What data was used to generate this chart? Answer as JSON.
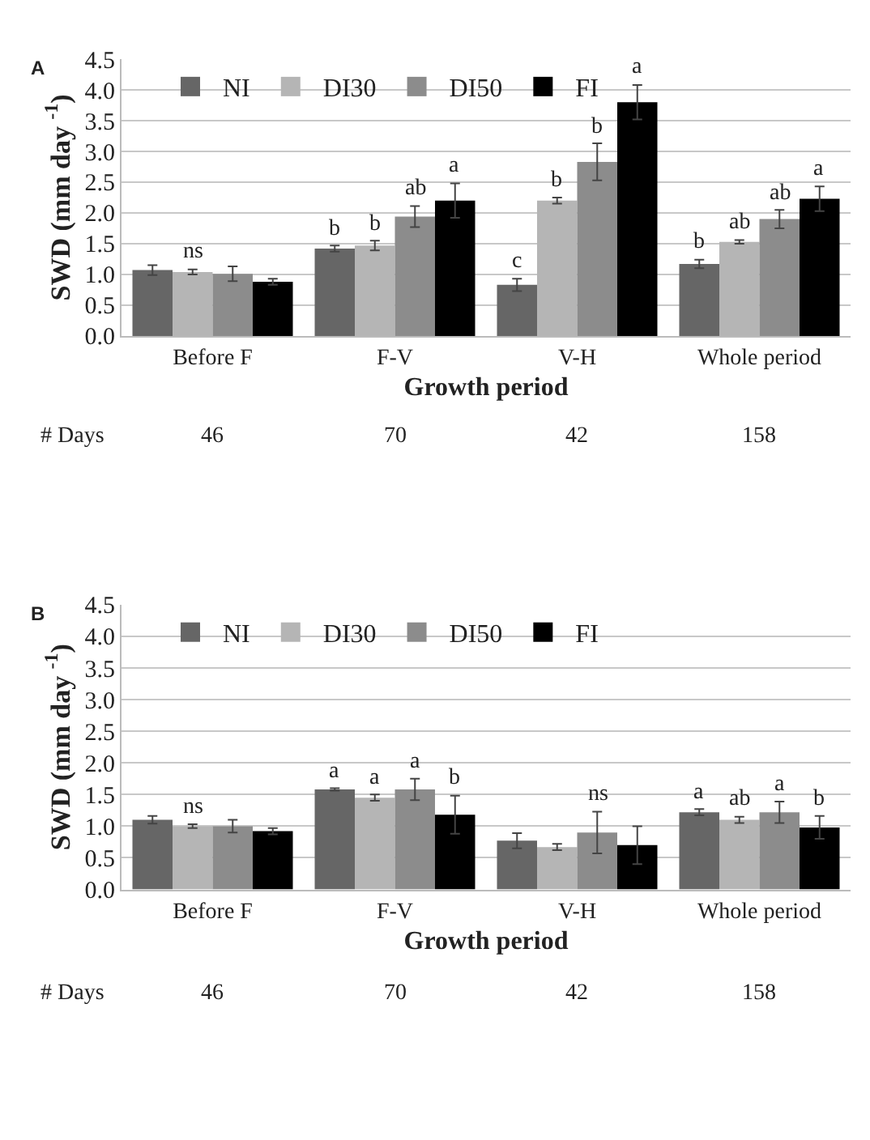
{
  "chart_data": [
    {
      "type": "bar",
      "title": "A",
      "xlabel": "Growth period",
      "ylabel": "SWD (mm day $^{-1}$)",
      "categories": [
        "Before F",
        "F-V",
        "V-H",
        "Whole period"
      ],
      "series": [
        {
          "name": "NI",
          "color": "#666666",
          "values": [
            1.07,
            1.42,
            0.83,
            1.17
          ],
          "errors": [
            0.08,
            0.05,
            0.1,
            0.07
          ],
          "value_labels": [
            null,
            "b",
            "c",
            "b"
          ]
        },
        {
          "name": "DI30",
          "color": "#b5b5b5",
          "values": [
            1.04,
            1.47,
            2.2,
            1.53
          ],
          "errors": [
            0.04,
            0.08,
            0.05,
            0.03
          ],
          "value_labels": [
            "ns",
            "b",
            "b",
            "ab"
          ]
        },
        {
          "name": "DI50",
          "color": "#8c8c8c",
          "values": [
            1.01,
            1.94,
            2.83,
            1.9
          ],
          "errors": [
            0.12,
            0.17,
            0.3,
            0.15
          ],
          "value_labels": [
            null,
            "ab",
            "b",
            "ab"
          ]
        },
        {
          "name": "FI",
          "color": "#000000",
          "values": [
            0.88,
            2.2,
            3.8,
            2.23
          ],
          "errors": [
            0.05,
            0.28,
            0.28,
            0.2
          ],
          "value_labels": [
            null,
            "a",
            "a",
            "a"
          ]
        }
      ],
      "annotations": [
        "# Days",
        "46",
        "70",
        "42",
        "158"
      ],
      "ylim": [
        0,
        4.5
      ],
      "yticks": [
        {
          "value": 0,
          "label": "0.0"
        },
        0.5,
        {
          "value": 1,
          "label": "1.0"
        },
        1.5,
        {
          "value": 2,
          "label": "2.0"
        },
        2.5,
        {
          "value": 3,
          "label": "3.0"
        },
        3.5,
        {
          "value": 4,
          "label": "4.0"
        },
        4.5
      ],
      "grid": "y",
      "legend": "top left"
    },
    {
      "type": "bar",
      "title": "B",
      "xlabel": "Growth period",
      "ylabel": "SWD (mm day $^{-1}$)",
      "categories": [
        "Before F",
        "F-V",
        "V-H",
        "Whole period"
      ],
      "series": [
        {
          "name": "NI",
          "color": "#666666",
          "values": [
            1.1,
            1.58,
            0.77,
            1.22
          ],
          "errors": [
            0.06,
            0.02,
            0.12,
            0.05
          ],
          "value_labels": [
            null,
            "a",
            null,
            "a"
          ]
        },
        {
          "name": "DI30",
          "color": "#b5b5b5",
          "values": [
            1.0,
            1.45,
            0.67,
            1.1
          ],
          "errors": [
            0.03,
            0.05,
            0.05,
            0.05
          ],
          "value_labels": [
            "ns",
            "a",
            null,
            "ab"
          ]
        },
        {
          "name": "DI50",
          "color": "#8c8c8c",
          "values": [
            1.0,
            1.58,
            0.9,
            1.22
          ],
          "errors": [
            0.1,
            0.17,
            0.33,
            0.17
          ],
          "value_labels": [
            null,
            "a",
            "ns",
            "a"
          ]
        },
        {
          "name": "FI",
          "color": "#000000",
          "values": [
            0.92,
            1.18,
            0.7,
            0.98
          ],
          "errors": [
            0.05,
            0.3,
            0.3,
            0.18
          ],
          "value_labels": [
            null,
            "b",
            null,
            "b"
          ]
        }
      ],
      "annotations": [
        "# Days",
        "46",
        "70",
        "42",
        "158"
      ],
      "ylim": [
        0,
        4.5
      ],
      "yticks": [
        {
          "value": 0,
          "label": "0.0"
        },
        0.5,
        {
          "value": 1,
          "label": "1.0"
        },
        1.5,
        {
          "value": 2,
          "label": "2.0"
        },
        2.5,
        {
          "value": 3,
          "label": "3.0"
        },
        3.5,
        {
          "value": 4,
          "label": "4.0"
        },
        4.5
      ],
      "grid": "y",
      "legend": "top left"
    }
  ]
}
